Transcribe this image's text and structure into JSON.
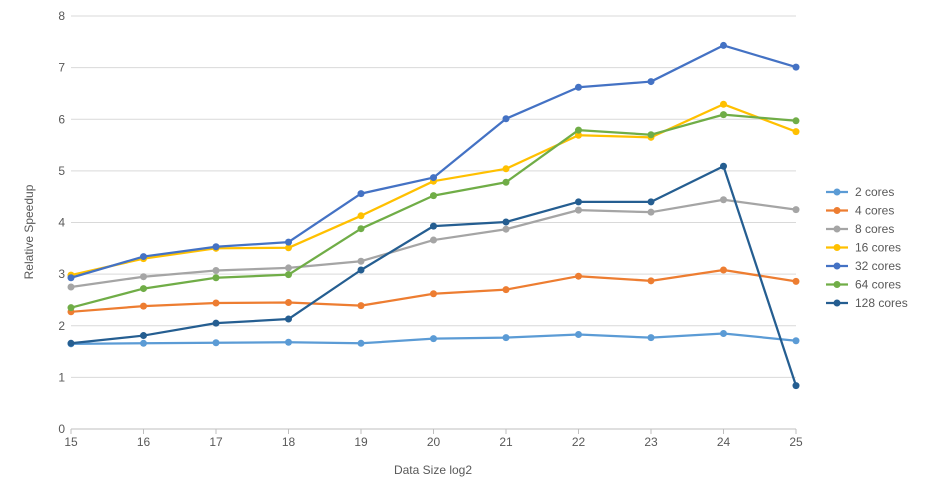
{
  "chart_data": {
    "type": "line",
    "xlabel": "Data Size log2",
    "ylabel": "Relative Speedup",
    "x": [
      15,
      16,
      17,
      18,
      19,
      20,
      21,
      22,
      23,
      24,
      25
    ],
    "xlim": [
      15,
      25
    ],
    "ylim": [
      0,
      8
    ],
    "yticks": [
      0,
      1,
      2,
      3,
      4,
      5,
      6,
      7,
      8
    ],
    "grid": true,
    "legend_position": "right",
    "series": [
      {
        "name": "2 cores",
        "color": "#5B9BD5",
        "values": [
          1.65,
          1.66,
          1.67,
          1.68,
          1.66,
          1.75,
          1.77,
          1.83,
          1.77,
          1.85,
          1.71
        ]
      },
      {
        "name": "4 cores",
        "color": "#ED7D31",
        "values": [
          2.27,
          2.38,
          2.44,
          2.45,
          2.39,
          2.62,
          2.7,
          2.96,
          2.87,
          3.08,
          2.86
        ]
      },
      {
        "name": "8 cores",
        "color": "#A5A5A5",
        "values": [
          2.75,
          2.95,
          3.07,
          3.12,
          3.25,
          3.66,
          3.87,
          4.24,
          4.2,
          4.44,
          4.25
        ]
      },
      {
        "name": "16 cores",
        "color": "#FFC000",
        "values": [
          2.98,
          3.3,
          3.5,
          3.51,
          4.13,
          4.8,
          5.04,
          5.69,
          5.65,
          6.29,
          5.76
        ]
      },
      {
        "name": "32 cores",
        "color": "#4472C4",
        "values": [
          2.93,
          3.34,
          3.53,
          3.62,
          4.56,
          4.87,
          6.01,
          6.62,
          6.73,
          7.43,
          7.01
        ]
      },
      {
        "name": "64 cores",
        "color": "#70AD47",
        "values": [
          2.35,
          2.72,
          2.93,
          2.99,
          3.88,
          4.52,
          4.78,
          5.79,
          5.7,
          6.09,
          5.97
        ]
      },
      {
        "name": "128 cores",
        "color": "#255E91",
        "values": [
          1.66,
          1.81,
          2.05,
          2.13,
          3.08,
          3.93,
          4.01,
          4.4,
          4.4,
          5.09,
          0.84
        ]
      }
    ]
  }
}
